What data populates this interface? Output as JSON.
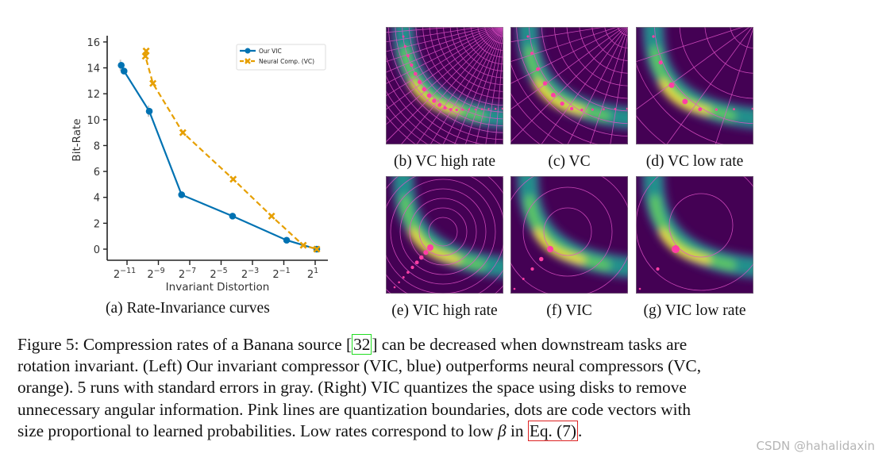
{
  "figure": {
    "subfigure_a_label": "(a) Rate-Invariance curves",
    "panels": [
      {
        "id": "b",
        "label": "(b) VC high rate",
        "type": "vc",
        "grid_density": "high"
      },
      {
        "id": "c",
        "label": "(c) VC",
        "type": "vc",
        "grid_density": "medium"
      },
      {
        "id": "d",
        "label": "(d) VC low rate",
        "type": "vc",
        "grid_density": "low"
      },
      {
        "id": "e",
        "label": "(e) VIC high rate",
        "type": "vic",
        "rings": 9
      },
      {
        "id": "f",
        "label": "(f) VIC",
        "type": "vic",
        "rings": 5
      },
      {
        "id": "g",
        "label": "(g) VIC low rate",
        "type": "vic",
        "rings": 2
      }
    ],
    "colors": {
      "vic": "#0072b2",
      "vc": "#e69f00",
      "quantization_lines": "#e052c8",
      "code_vectors": "#ff3ea5",
      "background": "#440154"
    }
  },
  "caption": {
    "lines": [
      [
        "Figure 5: Compression rates of a Banana source [",
        {
          "ref": "32",
          "box": "green"
        },
        "] can be decreased when downstream tasks are"
      ],
      [
        "rotation invariant. (Left) Our invariant compressor (VIC, blue) outperforms neural compressors (VC,"
      ],
      [
        "orange). 5 runs with standard errors in gray. (Right) VIC quantizes the space using disks to remove"
      ],
      [
        "unnecessary angular information. Pink lines are quantization boundaries, dots are code vectors with"
      ],
      [
        "size proportional to learned probabilities. Low rates correspond to low ",
        {
          "math": "β"
        },
        " in ",
        {
          "ref": "Eq. (7)",
          "box": "red"
        },
        "."
      ]
    ]
  },
  "watermark": "CSDN @hahalidaxin",
  "chart_data": {
    "type": "line",
    "title": "",
    "xlabel": "Invariant Distortion",
    "ylabel": "Bit-Rate",
    "xscale": "log2",
    "xticks": [
      -11,
      -9,
      -7,
      -5,
      -3,
      -1,
      1
    ],
    "xtick_labels": [
      "2^-11",
      "2^-9",
      "2^-7",
      "2^-5",
      "2^-3",
      "2^-1",
      "2^1"
    ],
    "yticks": [
      0,
      2,
      4,
      6,
      8,
      10,
      12,
      14,
      16
    ],
    "xlim_log2": [
      -12.3,
      1.7
    ],
    "ylim": [
      -0.9,
      16.3
    ],
    "legend_position": "top-right",
    "series": [
      {
        "name": "Our VIC",
        "color": "#0072b2",
        "marker": "circle",
        "linestyle": "solid",
        "x_log2": [
          -11.37,
          -11.19,
          -9.58,
          -7.52,
          -4.27,
          -0.82,
          1.1
        ],
        "y": [
          14.2,
          13.75,
          10.65,
          4.2,
          2.55,
          0.69,
          0.0
        ]
      },
      {
        "name": "Neural Comp. (VC)",
        "color": "#e69f00",
        "marker": "x",
        "linestyle": "dashed",
        "x_log2": [
          -9.78,
          -9.83,
          -9.35,
          -7.44,
          -4.23,
          -1.78,
          0.24,
          1.1
        ],
        "y": [
          15.3,
          14.9,
          12.8,
          9.0,
          5.4,
          2.55,
          0.3,
          0.0
        ]
      }
    ]
  }
}
